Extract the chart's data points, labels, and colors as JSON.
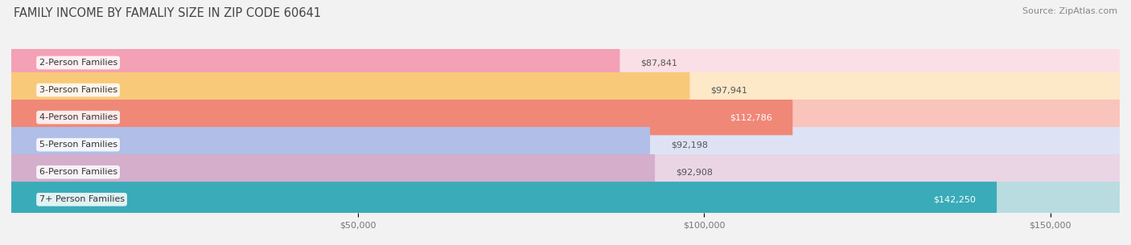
{
  "title": "FAMILY INCOME BY FAMALIY SIZE IN ZIP CODE 60641",
  "source": "Source: ZipAtlas.com",
  "categories": [
    "2-Person Families",
    "3-Person Families",
    "4-Person Families",
    "5-Person Families",
    "6-Person Families",
    "7+ Person Families"
  ],
  "values": [
    87841,
    97941,
    112786,
    92198,
    92908,
    142250
  ],
  "labels": [
    "$87,841",
    "$97,941",
    "$112,786",
    "$92,198",
    "$92,908",
    "$142,250"
  ],
  "bar_colors": [
    "#F4A0B5",
    "#F9C97A",
    "#F08878",
    "#B0BEE8",
    "#D4AECB",
    "#3AABB8"
  ],
  "bar_bg_colors": [
    "#FAE0E6",
    "#FDE8C8",
    "#F8C4BC",
    "#DDE3F5",
    "#EAD5E5",
    "#B8DCE0"
  ],
  "label_inside": [
    false,
    false,
    true,
    false,
    false,
    true
  ],
  "label_colors_outside": [
    "#555555",
    "#555555",
    "#555555",
    "#555555",
    "#555555",
    "#555555"
  ],
  "label_colors_inside": [
    "#ffffff",
    "#ffffff",
    "#ffffff",
    "#ffffff",
    "#ffffff",
    "#ffffff"
  ],
  "xlim": [
    0,
    160000
  ],
  "xticks": [
    50000,
    100000,
    150000
  ],
  "xtick_labels": [
    "$50,000",
    "$100,000",
    "$150,000"
  ],
  "bar_height": 0.65,
  "background_color": "#f2f2f2",
  "title_fontsize": 10.5,
  "source_fontsize": 8,
  "label_fontsize": 8,
  "tick_fontsize": 8,
  "cat_fontsize": 8
}
